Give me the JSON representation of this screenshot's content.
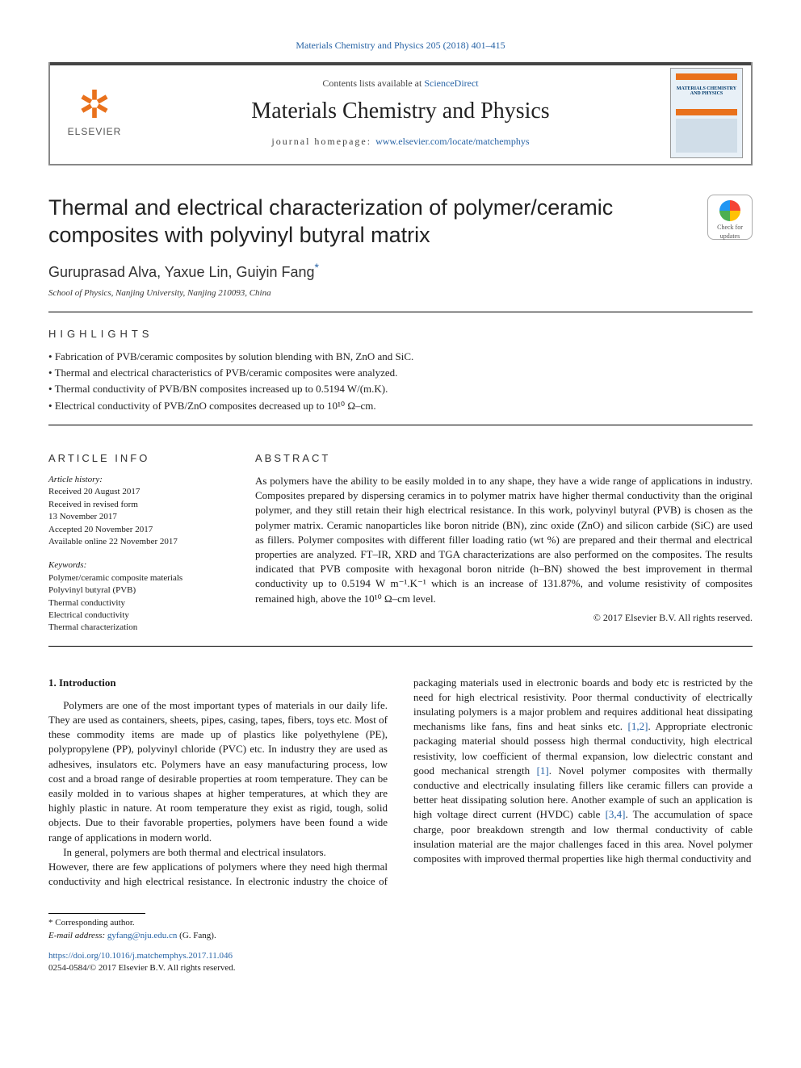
{
  "top_citation": {
    "text": "Materials Chemistry and Physics 205 (2018) 401–415",
    "color": "#2763a5",
    "fontsize": 12
  },
  "header": {
    "border_color": "#888888",
    "topbar_color": "#444444",
    "elsevier": {
      "tree_color": "#e9711c",
      "word": "ELSEVIER",
      "word_color": "#555555"
    },
    "contents_prefix": "Contents lists available at ",
    "contents_link": "ScienceDirect",
    "journal_name": "Materials Chemistry and Physics",
    "homepage_prefix": "journal homepage: ",
    "homepage_url": "www.elsevier.com/locate/matchemphys",
    "cover": {
      "bg": "#e8f0f7",
      "accent": "#e9711c",
      "title": "MATERIALS CHEMISTRY AND PHYSICS",
      "title_color": "#003a6b"
    }
  },
  "article": {
    "title": "Thermal and electrical characterization of polymer/ceramic composites with polyvinyl butyral matrix",
    "title_fontsize": 27,
    "authors_line": "Guruprasad Alva, Yaxue Lin, Guiyin Fang",
    "corr_mark": "*",
    "corr_color": "#2763a5",
    "affiliation": "School of Physics, Nanjing University, Nanjing 210093, China",
    "crossmark_label": "Check for updates"
  },
  "sections": {
    "highlights_label": "HIGHLIGHTS",
    "article_info_label": "ARTICLE INFO",
    "abstract_label": "ABSTRACT"
  },
  "highlights": [
    "Fabrication of PVB/ceramic composites by solution blending with BN, ZnO and SiC.",
    "Thermal and electrical characteristics of PVB/ceramic composites were analyzed.",
    "Thermal conductivity of PVB/BN composites increased up to 0.5194 W/(m.K).",
    "Electrical conductivity of PVB/ZnO composites decreased up to 10¹⁰ Ω–cm."
  ],
  "article_info": {
    "history_label": "Article history:",
    "history": [
      "Received 20 August 2017",
      "Received in revised form",
      "13 November 2017",
      "Accepted 20 November 2017",
      "Available online 22 November 2017"
    ],
    "keywords_label": "Keywords:",
    "keywords": [
      "Polymer/ceramic composite materials",
      "Polyvinyl butyral (PVB)",
      "Thermal conductivity",
      "Electrical conductivity",
      "Thermal characterization"
    ]
  },
  "abstract": {
    "text": "As polymers have the ability to be easily molded in to any shape, they have a wide range of applications in industry. Composites prepared by dispersing ceramics in to polymer matrix have higher thermal conductivity than the original polymer, and they still retain their high electrical resistance. In this work, polyvinyl butyral (PVB) is chosen as the polymer matrix. Ceramic nanoparticles like boron nitride (BN), zinc oxide (ZnO) and silicon carbide (SiC) are used as fillers. Polymer composites with different filler loading ratio (wt %) are prepared and their thermal and electrical properties are analyzed. FT–IR, XRD and TGA characterizations are also performed on the composites. The results indicated that PVB composite with hexagonal boron nitride (h–BN) showed the best improvement in thermal conductivity up to 0.5194 W m⁻¹.K⁻¹ which is an increase of 131.87%, and volume resistivity of composites remained high, above the 10¹⁰ Ω–cm level.",
    "copyright": "© 2017 Elsevier B.V. All rights reserved."
  },
  "intro_heading": "1.  Introduction",
  "body": {
    "p1": "Polymers are one of the most important types of materials in our daily life. They are used as containers, sheets, pipes, casing, tapes, fibers, toys etc. Most of these commodity items are made up of plastics like polyethylene (PE), polypropylene (PP), polyvinyl chloride (PVC) etc. In industry they are used as adhesives, insulators etc. Polymers have an easy manufacturing process, low cost and a broad range of desirable properties at room temperature. They can be easily molded in to various shapes at higher temperatures, at which they are highly plastic in nature. At room temperature they exist as rigid, tough, solid objects. Due to their favorable properties, polymers have been found a wide range of applications in modern world.",
    "p2": "In general, polymers are both thermal and electrical insulators.",
    "p3a": "However, there are few applications of polymers where they need high thermal conductivity and high electrical resistance. In electronic industry the choice of packaging materials used in electronic boards and body etc is restricted by the need for high electrical resistivity. Poor thermal conductivity of electrically insulating polymers is a major problem and requires additional heat dissipating mechanisms like fans, fins and heat sinks etc. ",
    "cite1": "[1,2]",
    "p3b": ". Appropriate electronic packaging material should possess high thermal conductivity, high electrical resistivity, low coefficient of thermal expansion, low dielectric constant and good mechanical strength ",
    "cite2": "[1]",
    "p3c": ". Novel polymer composites with thermally conductive and electrically insulating fillers like ceramic fillers can provide a better heat dissipating solution here. Another example of such an application is high voltage direct current (HVDC) cable ",
    "cite3": "[3,4]",
    "p3d": ". The accumulation of space charge, poor breakdown strength and low thermal conductivity of cable insulation material are the major challenges faced in this area. Novel polymer composites with improved thermal properties like high thermal conductivity and"
  },
  "footer": {
    "corr_label": "* Corresponding author.",
    "email_label": "E-mail address: ",
    "email": "gyfang@nju.edu.cn",
    "email_suffix": " (G. Fang).",
    "doi": "https://doi.org/10.1016/j.matchemphys.2017.11.046",
    "issn_line": "0254-0584/© 2017 Elsevier B.V. All rights reserved."
  },
  "colors": {
    "link": "#2763a5",
    "text": "#1a1a1a",
    "rule": "#000000"
  }
}
